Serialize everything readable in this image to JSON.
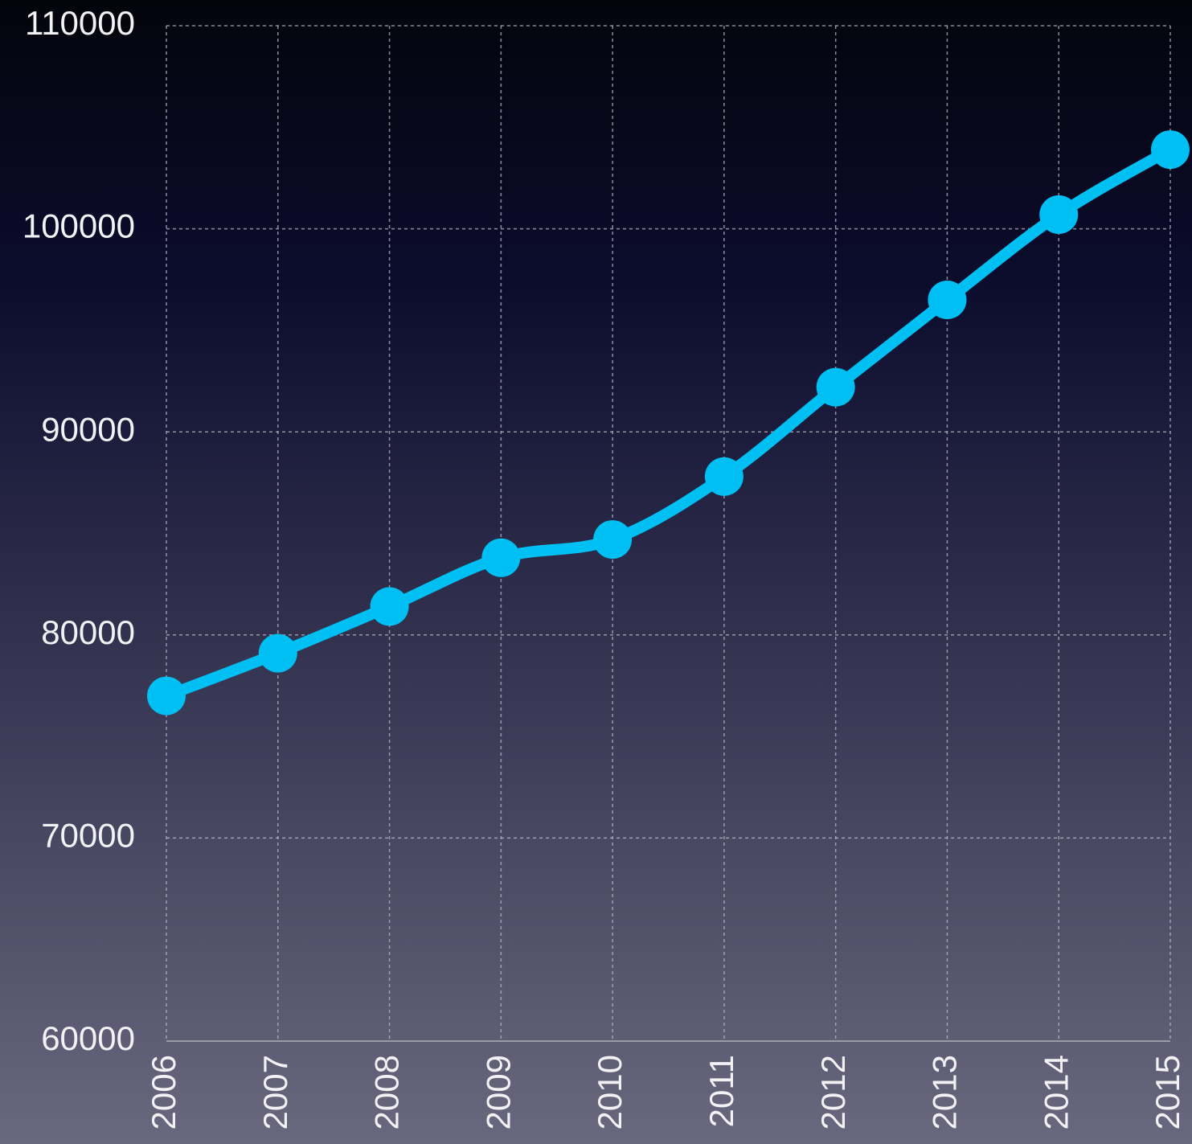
{
  "chart_data": {
    "type": "line",
    "categories": [
      "2006",
      "2007",
      "2008",
      "2009",
      "2010",
      "2011",
      "2012",
      "2013",
      "2014",
      "2015"
    ],
    "series": [
      {
        "color": "#00bff3",
        "values": [
          77000,
          79100,
          81400,
          83800,
          84700,
          87800,
          92200,
          96500,
          100700,
          103900
        ]
      }
    ],
    "ylim": [
      60000,
      110000
    ],
    "yticks": [
      60000,
      70000,
      80000,
      90000,
      100000,
      110000
    ],
    "grid": true
  }
}
